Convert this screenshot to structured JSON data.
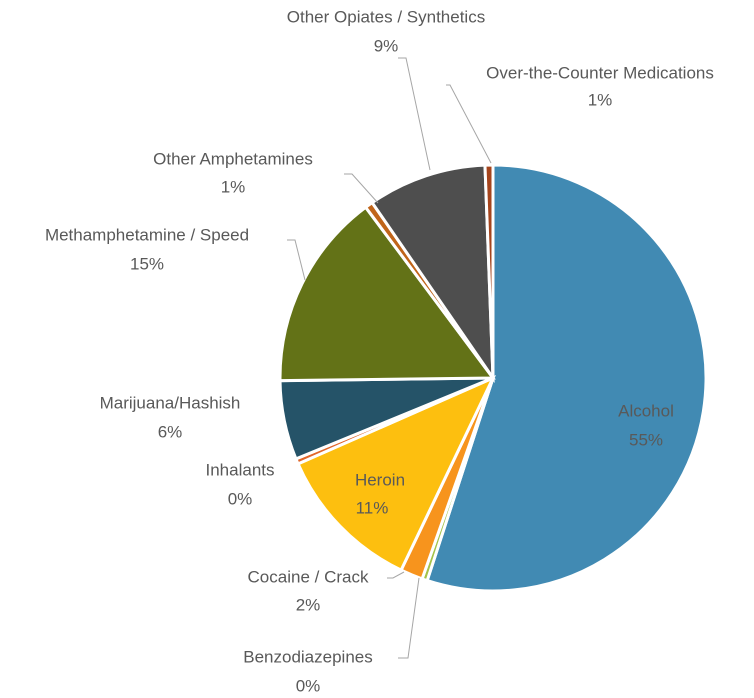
{
  "chart_data": {
    "type": "pie",
    "categories": [
      "Alcohol",
      "Benzodiazepines",
      "Cocaine / Crack",
      "Heroin",
      "Inhalants",
      "Marijuana/Hashish",
      "Methamphetamine / Speed",
      "Other Amphetamines",
      "Other Opiates / Synthetics",
      "Over-the-Counter Medications"
    ],
    "values": [
      55,
      0.4,
      1.7,
      11.3,
      0.4,
      6,
      15,
      0.6,
      9,
      0.6
    ],
    "value_labels": [
      "55%",
      "0%",
      "2%",
      "11%",
      "0%",
      "6%",
      "15%",
      "1%",
      "9%",
      "1%"
    ],
    "colors": [
      "#418ab3",
      "#a5c249",
      "#f7941d",
      "#fdbf0f",
      "#e0662a",
      "#255368",
      "#637217",
      "#c0651a",
      "#4e4e4e",
      "#a5441c"
    ]
  }
}
